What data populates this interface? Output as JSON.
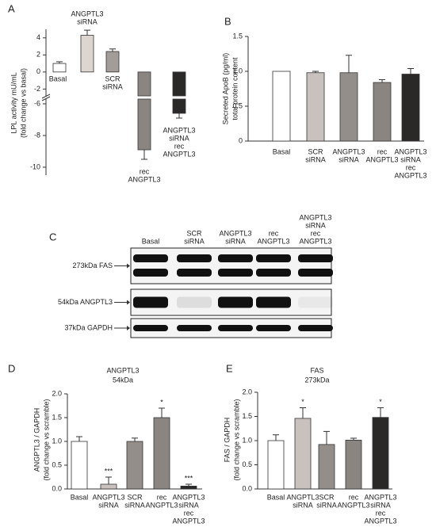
{
  "chart_data": [
    {
      "type": "bar",
      "panel": "A",
      "y_label": [
        "LPL activity mU/mL",
        "(fold change vs basal)"
      ],
      "categories": [
        [
          "Basal"
        ],
        [
          "ANGPTL3",
          "siRNA"
        ],
        [
          "SCR",
          "siRNA"
        ],
        [
          "rec",
          "ANGPTL3"
        ],
        [
          "ANGPTL3",
          "siRNA",
          "rec",
          "ANGPTL3"
        ]
      ],
      "values": [
        1.0,
        4.3,
        2.4,
        -8.9,
        -6.6
      ],
      "errors": [
        0.2,
        0.6,
        0.3,
        0.6,
        0.3
      ],
      "colors": [
        "#ffffff",
        "#ddd5cf",
        "#a29d99",
        "#8b8581",
        "#2b2828"
      ],
      "segments": [
        {
          "ylim": [
            -2.8,
            5
          ],
          "yticks": [
            -2,
            0,
            2,
            4
          ]
        },
        {
          "ylim": [
            -10.5,
            -5.7
          ],
          "yticks": [
            -6,
            -8,
            -10
          ]
        }
      ]
    },
    {
      "type": "bar",
      "panel": "B",
      "y_label": [
        "Secreted ApoB (pg/ml)",
        "total protein content"
      ],
      "categories": [
        [
          "Basal"
        ],
        [
          "SCR",
          "siRNA"
        ],
        [
          "ANGPTL3",
          "siRNA"
        ],
        [
          "rec",
          "ANGPTL3"
        ],
        [
          "ANGPTL3",
          "siRNA",
          "rec",
          "ANGPTL3"
        ]
      ],
      "values": [
        1.0,
        0.98,
        0.98,
        0.84,
        0.96
      ],
      "errors": [
        0,
        0.02,
        0.25,
        0.04,
        0.08
      ],
      "colors": [
        "#ffffff",
        "#c9c1bd",
        "#948e8a",
        "#8b8581",
        "#2b2828"
      ],
      "segments": [
        {
          "ylim": [
            0,
            1.5
          ],
          "yticks": [
            0,
            0.5,
            {
              "value": 1,
              "label": "1.0"
            },
            1.5
          ]
        }
      ]
    },
    {
      "type": "bar",
      "panel": "D",
      "title": [
        "ANGPTL3",
        "54kDa"
      ],
      "y_label": [
        "ANGPTL3 / GAPDH",
        "(fold change vs scramble)"
      ],
      "categories": [
        [
          "Basal"
        ],
        [
          "ANGPTL3",
          "siRNA"
        ],
        [
          "SCR",
          "siRNA"
        ],
        [
          "rec",
          "ANGPTL3"
        ],
        [
          "ANGPTL3",
          "siRNA",
          "rec",
          "ANGPTL3"
        ]
      ],
      "values": [
        1.0,
        0.1,
        1.0,
        1.5,
        0.06
      ],
      "errors": [
        0.1,
        0.15,
        0.07,
        0.2,
        0.04
      ],
      "significance": [
        null,
        "***",
        null,
        "*",
        "***"
      ],
      "colors": [
        "#ffffff",
        "#c9c1bd",
        "#948e8a",
        "#8b8581",
        "#2b2828"
      ],
      "segments": [
        {
          "ylim": [
            0,
            2
          ],
          "yticks": [
            {
              "value": 0,
              "label": "0.0"
            },
            0.5,
            {
              "value": 1,
              "label": "1.0"
            },
            1.5,
            {
              "value": 2,
              "label": "2.0"
            }
          ]
        }
      ]
    },
    {
      "type": "bar",
      "panel": "E",
      "title": [
        "FAS",
        "273kDa"
      ],
      "y_label": [
        "FAS / GAPDH",
        "(fold change vs scramble)"
      ],
      "categories": [
        [
          "Basal"
        ],
        [
          "ANGPTL3",
          "siRNA"
        ],
        [
          "SCR",
          "siRNA"
        ],
        [
          "rec",
          "ANGPTL3"
        ],
        [
          "ANGPTL3",
          "siRNA",
          "rec",
          "ANGPTL3"
        ]
      ],
      "values": [
        1.0,
        1.46,
        0.92,
        1.01,
        1.48
      ],
      "errors": [
        0.12,
        0.22,
        0.27,
        0.04,
        0.2
      ],
      "significance": [
        null,
        "*",
        null,
        null,
        "*"
      ],
      "colors": [
        "#ffffff",
        "#c9c1bd",
        "#948e8a",
        "#8b8581",
        "#2b2828"
      ],
      "segments": [
        {
          "ylim": [
            0,
            2
          ],
          "yticks": [
            {
              "value": 0,
              "label": "0.0"
            },
            0.5,
            {
              "value": 1,
              "label": "1.0"
            },
            1.5,
            {
              "value": 2,
              "label": "2.0"
            }
          ]
        }
      ]
    }
  ],
  "blot": {
    "panel": "C",
    "lanes": [
      [
        "Basal"
      ],
      [
        "SCR",
        "siRNA"
      ],
      [
        "ANGPTL3",
        "siRNA"
      ],
      [
        "rec",
        "ANGPTL3"
      ],
      [
        "ANGPTL3",
        "siRNA",
        "rec",
        "ANGPTL3"
      ]
    ],
    "rows": [
      "273kDa FAS",
      "54kDa ANGPTL3",
      "37kDa GAPDH"
    ]
  }
}
